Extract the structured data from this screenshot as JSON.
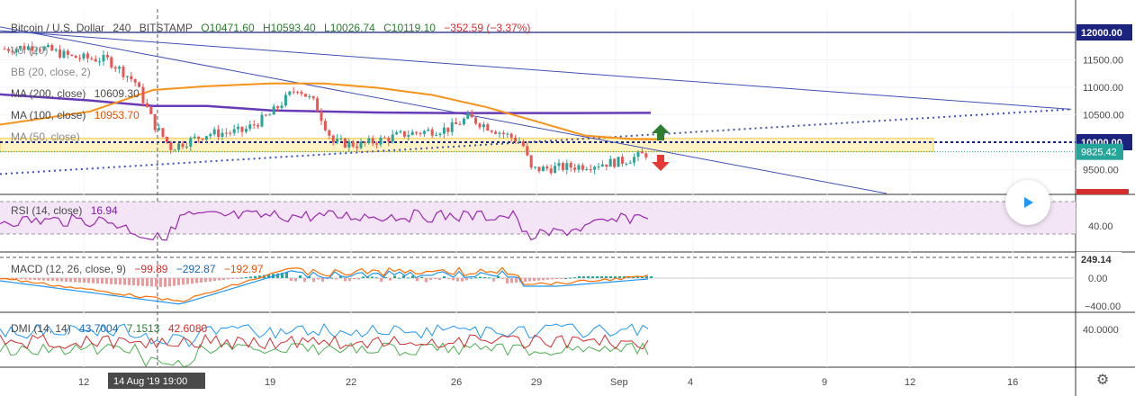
{
  "header": {
    "symbol": "Bitcoin / U.S. Dollar",
    "interval": "240",
    "exchange": "BITSTAMP",
    "open": "O10471.60",
    "high": "H10593.40",
    "low": "L10026.74",
    "close": "C10119.10",
    "change": "−352.59 (−3.37%)"
  },
  "indicators": {
    "vol": "Vol (20)",
    "bb": "BB (20, close, 2)",
    "ma200_label": "MA (200, close)",
    "ma200_value": "10609.30",
    "ma100_label": "MA (100, close)",
    "ma100_value": "10953.70",
    "ma50_label": "MA (50, close)"
  },
  "rsi": {
    "label": "RSI (14, close)",
    "value": "16.94",
    "axis_label": "40.00"
  },
  "macd": {
    "label": "MACD (12, 26, close, 9)",
    "v1": "−99.89",
    "v2": "−292.87",
    "v3": "−192.97",
    "axis_top": "249.14",
    "axis_mid": "0.00",
    "axis_bot": "−400.00"
  },
  "dmi": {
    "label": "DMI (14, 14)",
    "v1": "43.7004",
    "v2": "7.1513",
    "v3": "42.6080",
    "axis_label": "40.0000"
  },
  "price_axis": {
    "labels": [
      "12000.00",
      "11500.00",
      "11000.00",
      "10500.00",
      "10000.00",
      "9500.00"
    ],
    "current": "9825.42",
    "hline": "12000.00",
    "support": "10000.00"
  },
  "time_axis": {
    "labels": [
      "12",
      "19",
      "22",
      "26",
      "29",
      "Sep",
      "4",
      "9",
      "12",
      "16"
    ],
    "cursor_label": "14 Aug '19   19:00"
  },
  "colors": {
    "up": "#26a69a",
    "down": "#ef5350",
    "ma200": "#f7931a",
    "ma100": "#673ab7",
    "trend": "#3f51b5",
    "support": "#1a237e",
    "rsi": "#9c27b0",
    "macd": "#2196f3",
    "signal": "#ff6d00",
    "dmi_plus": "#2196f3",
    "dmi_minus": "#4caf50",
    "adx": "#d32f2f"
  },
  "chart_data": {
    "type": "line",
    "title": "Bitcoin / U.S. Dollar · 240 · BITSTAMP",
    "x": [
      "12",
      "19",
      "22",
      "26",
      "29",
      "Sep"
    ],
    "series": [
      {
        "name": "Bitcoin / U.S. Dollar",
        "values": [
          11500,
          10000,
          10050,
          10300,
          9500,
          9825
        ]
      }
    ],
    "ylim": [
      9200,
      12200
    ],
    "ylabel": ""
  }
}
